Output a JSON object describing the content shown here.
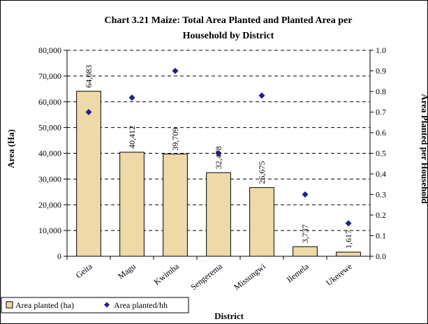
{
  "chart_data": {
    "type": "bar",
    "title_line1": "Chart 3.21 Maize: Total Area Planted and Planted Area per",
    "title_line2": "Household by District",
    "xlabel": "District",
    "ylabel": "Area (Ha)",
    "y2label": "Area Planted per Household",
    "categories": [
      "Geita",
      "Magu",
      "Kwimba",
      "Sengerema",
      "Missungwi",
      "Ilemela",
      "Ukerewe"
    ],
    "ylim": [
      0,
      80000
    ],
    "yticks": [
      "0",
      "10,000",
      "20,000",
      "30,000",
      "40,000",
      "50,000",
      "60,000",
      "70,000",
      "80,000"
    ],
    "y2lim": [
      0,
      1.0
    ],
    "y2ticks": [
      "0.0",
      "0.1",
      "0.2",
      "0.3",
      "0.4",
      "0.5",
      "0.6",
      "0.7",
      "0.8",
      "0.9",
      "1.0"
    ],
    "grid": true,
    "legend_position": "bottom-left",
    "series": [
      {
        "name": "Area planted (ha)",
        "kind": "bar",
        "axis": "left",
        "color": "#efd9a6",
        "values": [
          64083,
          40412,
          39709,
          32478,
          26675,
          3737,
          1617
        ],
        "labels": [
          "64,083",
          "40,412",
          "39,709",
          "32,478",
          "26,675",
          "3,737",
          "1,617"
        ]
      },
      {
        "name": "Area planted/hh",
        "kind": "scatter",
        "axis": "right",
        "color": "#1f1f8a",
        "values": [
          0.7,
          0.77,
          0.9,
          0.5,
          0.78,
          0.3,
          0.16
        ]
      }
    ]
  }
}
